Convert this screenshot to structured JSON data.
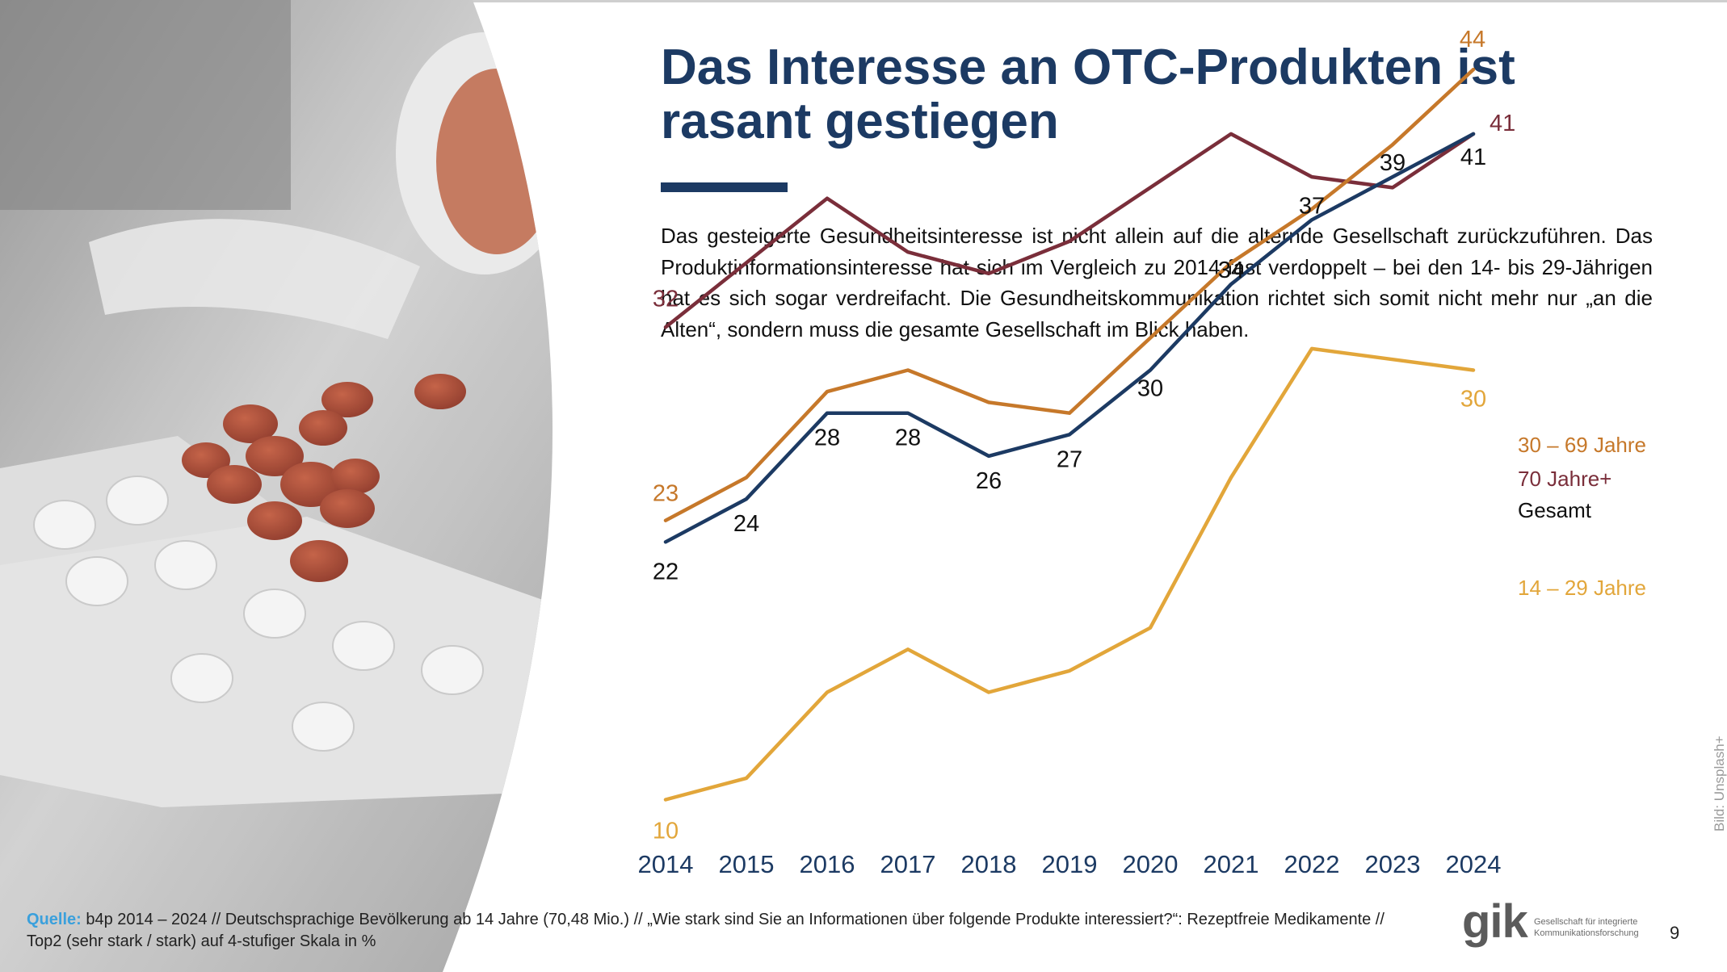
{
  "title": "Das Interesse an OTC-Produkten ist rasant gestiegen",
  "body_text": "Das gesteigerte Gesundheitsinteresse ist nicht allein auf die alternde Gesellschaft zurückzuführen. Das Produktinformationsinteresse hat sich im Vergleich zu 2014 fast verdoppelt – bei den 14- bis 29-Jährigen hat es sich sogar verdreifacht. Die Gesundheitskommunikation richtet sich somit nicht mehr nur „an die Alten“, sondern muss die gesamte Gesellschaft im Blick haben.",
  "image_credit": "Bild: Unsplash+",
  "source": {
    "label": "Quelle:",
    "text": " b4p 2014 – 2024 // Deutschsprachige Bevölkerung ab 14 Jahre (70,48 Mio.) // „Wie stark sind Sie an Informationen über folgende Produkte interessiert?“: Rezeptfreie Medikamente // Top2 (sehr stark / stark) auf 4-stufiger Skala in %"
  },
  "logo": {
    "mark": "gik",
    "text": "Gesellschaft für integrierte Kommunikationsforschung"
  },
  "page_number": "9",
  "colors": {
    "title": "#1c3a63",
    "series_70plus": "#7a2e3a",
    "series_30_69": "#c6782a",
    "series_gesamt": "#1c3a63",
    "series_14_29": "#e2a63a",
    "source_label": "#3aa0dc"
  },
  "chart_data": {
    "type": "line",
    "x": [
      "2014",
      "2015",
      "2016",
      "2017",
      "2018",
      "2019",
      "2020",
      "2021",
      "2022",
      "2023",
      "2024"
    ],
    "ylim": [
      0,
      50
    ],
    "grid": false,
    "legend": "right, at line ends",
    "series": [
      {
        "name": "70 Jahre+",
        "color": "#7a2e3a",
        "values": [
          32,
          35,
          38,
          35.5,
          34.5,
          36,
          38.5,
          41,
          39,
          38.5,
          41
        ],
        "labels": [
          {
            "index": 0,
            "text": "32"
          },
          {
            "index": 10,
            "text": "41"
          }
        ]
      },
      {
        "name": "30 – 69 Jahre",
        "color": "#c6782a",
        "values": [
          23,
          25,
          29,
          30,
          28.5,
          28,
          31.5,
          35,
          37.5,
          40.5,
          44
        ],
        "labels": [
          {
            "index": 0,
            "text": "23"
          },
          {
            "index": 10,
            "text": "44"
          }
        ]
      },
      {
        "name": "Gesamt",
        "color": "#1c3a63",
        "values": [
          22,
          24,
          28,
          28,
          26,
          27,
          30,
          34,
          37,
          39,
          41
        ],
        "labels": [
          {
            "index": 0,
            "text": "22"
          },
          {
            "index": 1,
            "text": "24"
          },
          {
            "index": 2,
            "text": "28"
          },
          {
            "index": 3,
            "text": "28"
          },
          {
            "index": 4,
            "text": "26"
          },
          {
            "index": 5,
            "text": "27"
          },
          {
            "index": 6,
            "text": "30"
          },
          {
            "index": 7,
            "text": "34"
          },
          {
            "index": 8,
            "text": "37"
          },
          {
            "index": 9,
            "text": "39"
          },
          {
            "index": 10,
            "text": "41"
          }
        ]
      },
      {
        "name": "14 – 29 Jahre",
        "color": "#e2a63a",
        "values": [
          10,
          11,
          15,
          17,
          15,
          16,
          18,
          25,
          31,
          30.5,
          30
        ],
        "labels": [
          {
            "index": 0,
            "text": "10"
          },
          {
            "index": 10,
            "text": "30"
          }
        ]
      }
    ]
  }
}
